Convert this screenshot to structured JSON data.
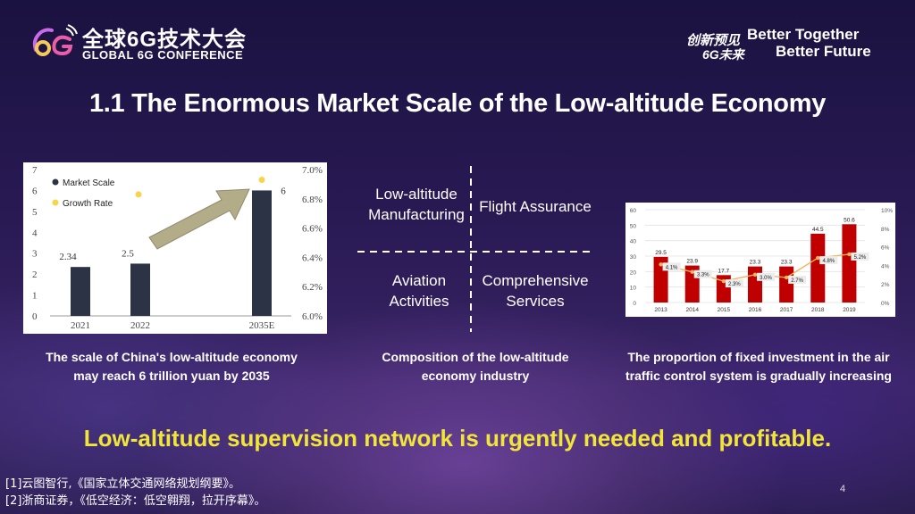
{
  "header": {
    "logo_text": "6G",
    "conference_cn": "全球6G技术大会",
    "conference_en": "GLOBAL 6G CONFERENCE",
    "slogan_cn_line1": "创新预见",
    "slogan_cn_line2": "6G未来",
    "slogan_en_line1": "Better Together",
    "slogan_en_line2": "Better Future"
  },
  "slide": {
    "title": "1.1  The Enormous Market Scale of the Low-altitude Economy",
    "highlight": "Low-altitude supervision network is urgently needed and profitable.",
    "page_number": "4",
    "references": [
      "[1]云图智行,《国家立体交通网络规划纲要》。",
      "[2]浙商证券，《低空经济：低空翱翔，拉开序幕》。"
    ]
  },
  "left_chart": {
    "caption_line1": "The scale of China's low-altitude economy",
    "caption_line2": "may reach 6 trillion yuan by 2035",
    "y_left_ticks": [
      "0",
      "1",
      "2",
      "3",
      "4",
      "5",
      "6",
      "7"
    ],
    "y_right_ticks": [
      "6.0%",
      "6.2%",
      "6.4%",
      "6.6%",
      "6.8%",
      "7.0%"
    ]
  },
  "diagram": {
    "caption_line1": "Composition of the low-altitude",
    "caption_line2": "economy industry",
    "q1_line1": "Low-altitude",
    "q1_line2": "Manufacturing",
    "q2": "Flight Assurance",
    "q3_line1": "Aviation",
    "q3_line2": "Activities",
    "q4_line1": "Comprehensive",
    "q4_line2": "Services"
  },
  "right_chart": {
    "caption_line1": "The proportion of fixed investment in the air",
    "caption_line2": "traffic control system is gradually increasing",
    "y_left_ticks": [
      "0",
      "10",
      "20",
      "30",
      "40",
      "50",
      "60"
    ],
    "y_right_ticks": [
      "0%",
      "2%",
      "4%",
      "6%",
      "8%",
      "10%"
    ]
  },
  "chart_data": [
    {
      "type": "bar",
      "categories": [
        "2021",
        "2022",
        "2035E"
      ],
      "series": [
        {
          "name": "Market Scale",
          "type": "bar",
          "values": [
            2.34,
            2.5,
            6
          ],
          "color": "#2b3344"
        },
        {
          "name": "Growth Rate",
          "type": "scatter",
          "values": [
            null,
            6.83,
            6.93
          ],
          "color": "#f7d54a"
        }
      ],
      "data_labels": [
        "2.34",
        "2.5",
        "6"
      ],
      "ylim": [
        0,
        7
      ],
      "y2lim": [
        6.0,
        7.0
      ],
      "legend": "top-left",
      "grid": false
    },
    {
      "type": "bar",
      "categories": [
        "2013",
        "2014",
        "2015",
        "2016",
        "2017",
        "2018",
        "2019"
      ],
      "series": [
        {
          "type": "bar",
          "values": [
            29.5,
            23.9,
            17.7,
            23.3,
            23.3,
            44.5,
            50.6
          ],
          "color": "#c00000"
        },
        {
          "type": "line",
          "values": [
            4.1,
            3.3,
            2.3,
            3.0,
            2.7,
            4.8,
            5.2
          ],
          "color": "#f0b45a"
        }
      ],
      "bar_labels": [
        "29.5",
        "23.9",
        "17.7",
        "23.3",
        "23.3",
        "44.5",
        "50.6"
      ],
      "line_labels": [
        "4.1%",
        "3.3%",
        "2.3%",
        "3.0%",
        "2.7%",
        "4.8%",
        "5.2%"
      ],
      "ylim": [
        0,
        60
      ],
      "y2lim": [
        0,
        10
      ],
      "grid": true
    }
  ]
}
